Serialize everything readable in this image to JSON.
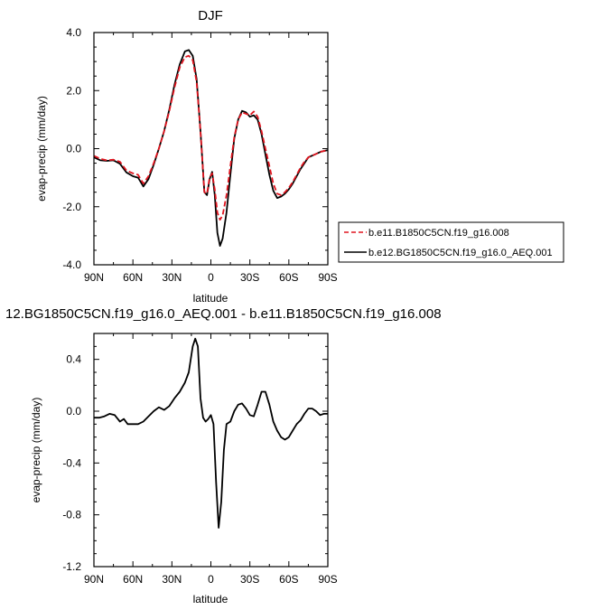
{
  "chart_data": [
    {
      "type": "line",
      "title": "DJF",
      "xlabel": "latitude",
      "ylabel": "evap-precip (mm/day)",
      "xlim": [
        90,
        -90
      ],
      "ylim": [
        -4.0,
        4.0
      ],
      "x_ticks": [
        90,
        60,
        30,
        0,
        -30,
        -60,
        -90
      ],
      "x_tick_labels": [
        "90N",
        "60N",
        "30N",
        "0",
        "30S",
        "60S",
        "90S"
      ],
      "y_ticks": [
        -4.0,
        -2.0,
        0.0,
        2.0,
        4.0
      ],
      "y_tick_labels": [
        "-4.0",
        "-2.0",
        "0.0",
        "2.0",
        "4.0"
      ],
      "grid": false,
      "legend_position": "right",
      "series": [
        {
          "name": "b.e11.B1850C5CN.f19_g16.008",
          "color": "#e0141e",
          "dash": "dashed",
          "x": [
            90,
            85,
            80,
            75,
            70,
            65,
            60,
            56,
            52,
            48,
            44,
            40,
            36,
            32,
            28,
            24,
            20,
            17,
            14,
            11,
            8,
            5,
            3,
            1,
            -1,
            -3,
            -5,
            -7,
            -9,
            -12,
            -15,
            -18,
            -21,
            -24,
            -27,
            -30,
            -33,
            -36,
            -39,
            -42,
            -45,
            -48,
            -51,
            -54,
            -57,
            -60,
            -63,
            -66,
            -69,
            -72,
            -75,
            -80,
            -85,
            -90
          ],
          "y": [
            -0.25,
            -0.35,
            -0.4,
            -0.38,
            -0.45,
            -0.75,
            -0.85,
            -0.9,
            -1.2,
            -0.95,
            -0.5,
            0.0,
            0.6,
            1.3,
            2.1,
            2.8,
            3.15,
            3.2,
            3.05,
            2.3,
            0.6,
            -1.5,
            -1.55,
            -1.0,
            -0.85,
            -1.4,
            -2.2,
            -2.45,
            -2.3,
            -1.6,
            -0.6,
            0.4,
            1.0,
            1.25,
            1.2,
            1.15,
            1.28,
            1.1,
            0.6,
            0.0,
            -0.6,
            -1.2,
            -1.55,
            -1.6,
            -1.5,
            -1.35,
            -1.15,
            -0.9,
            -0.65,
            -0.45,
            -0.3,
            -0.2,
            -0.1,
            -0.05
          ]
        },
        {
          "name": "b.e12.BG1850C5CN.f19_g16.0_AEQ.001",
          "color": "#000000",
          "dash": "solid",
          "x": [
            90,
            85,
            80,
            75,
            70,
            65,
            60,
            56,
            52,
            48,
            44,
            40,
            36,
            32,
            28,
            24,
            20,
            17,
            14,
            11,
            8,
            5,
            3,
            1,
            -1,
            -3,
            -5,
            -7,
            -9,
            -12,
            -15,
            -18,
            -21,
            -24,
            -27,
            -30,
            -33,
            -36,
            -39,
            -42,
            -45,
            -48,
            -51,
            -54,
            -57,
            -60,
            -63,
            -66,
            -69,
            -72,
            -75,
            -80,
            -85,
            -90
          ],
          "y": [
            -0.3,
            -0.4,
            -0.42,
            -0.4,
            -0.52,
            -0.82,
            -0.95,
            -1.0,
            -1.3,
            -1.05,
            -0.55,
            0.0,
            0.6,
            1.35,
            2.2,
            2.9,
            3.35,
            3.4,
            3.2,
            2.4,
            0.6,
            -1.5,
            -1.6,
            -1.05,
            -0.8,
            -1.6,
            -2.9,
            -3.35,
            -3.1,
            -2.2,
            -0.9,
            0.35,
            1.0,
            1.3,
            1.25,
            1.1,
            1.15,
            1.0,
            0.5,
            -0.2,
            -0.9,
            -1.45,
            -1.7,
            -1.65,
            -1.55,
            -1.4,
            -1.2,
            -0.95,
            -0.7,
            -0.5,
            -0.3,
            -0.2,
            -0.1,
            -0.05
          ]
        }
      ]
    },
    {
      "type": "line",
      "title": "12.BG1850C5CN.f19_g16.0_AEQ.001 - b.e11.B1850C5CN.f19_g16.008",
      "xlabel": "latitude",
      "ylabel": "evap-precip (mm/day)",
      "xlim": [
        90,
        -90
      ],
      "ylim": [
        -1.2,
        0.6
      ],
      "x_ticks": [
        90,
        60,
        30,
        0,
        -30,
        -60,
        -90
      ],
      "x_tick_labels": [
        "90N",
        "60N",
        "30N",
        "0",
        "30S",
        "60S",
        "90S"
      ],
      "y_ticks": [
        -1.2,
        -0.8,
        -0.4,
        0.0,
        0.4
      ],
      "y_tick_labels": [
        "-1.2",
        "-0.8",
        "-0.4",
        "0.0",
        "0.4"
      ],
      "grid": false,
      "series": [
        {
          "color": "#000000",
          "dash": "solid",
          "x": [
            90,
            86,
            82,
            78,
            74,
            70,
            67,
            64,
            60,
            56,
            52,
            48,
            44,
            40,
            36,
            32,
            28,
            24,
            20,
            17,
            14,
            12,
            10,
            8,
            6,
            4,
            2,
            0,
            -2,
            -4,
            -6,
            -8,
            -10,
            -12,
            -15,
            -18,
            -21,
            -24,
            -27,
            -30,
            -33,
            -36,
            -39,
            -42,
            -45,
            -48,
            -51,
            -54,
            -57,
            -60,
            -63,
            -66,
            -69,
            -72,
            -75,
            -78,
            -81,
            -84,
            -87,
            -90
          ],
          "y": [
            -0.05,
            -0.05,
            -0.04,
            -0.02,
            -0.03,
            -0.08,
            -0.06,
            -0.1,
            -0.1,
            -0.1,
            -0.08,
            -0.04,
            0.0,
            0.03,
            0.01,
            0.04,
            0.1,
            0.15,
            0.22,
            0.3,
            0.5,
            0.56,
            0.5,
            0.1,
            -0.05,
            -0.08,
            -0.06,
            -0.03,
            -0.1,
            -0.55,
            -0.9,
            -0.7,
            -0.3,
            -0.1,
            -0.08,
            0.0,
            0.05,
            0.06,
            0.02,
            -0.03,
            -0.04,
            0.05,
            0.15,
            0.15,
            0.05,
            -0.08,
            -0.15,
            -0.2,
            -0.22,
            -0.2,
            -0.15,
            -0.1,
            -0.07,
            -0.02,
            0.02,
            0.02,
            0.0,
            -0.03,
            -0.02,
            -0.02
          ]
        }
      ]
    }
  ]
}
